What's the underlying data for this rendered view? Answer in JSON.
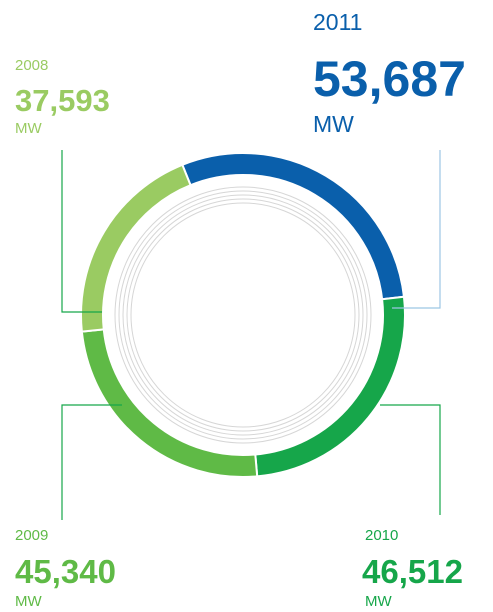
{
  "chart_data": {
    "type": "donut",
    "categories": [
      "2008",
      "2009",
      "2010",
      "2011"
    ],
    "values": [
      37593,
      45340,
      46512,
      53687
    ],
    "value_labels": [
      "37,593",
      "45,340",
      "46,512",
      "53,687"
    ],
    "unit": "MW",
    "colors": [
      "#9acb62",
      "#5fba46",
      "#16a64a",
      "#0a5fab"
    ]
  }
}
